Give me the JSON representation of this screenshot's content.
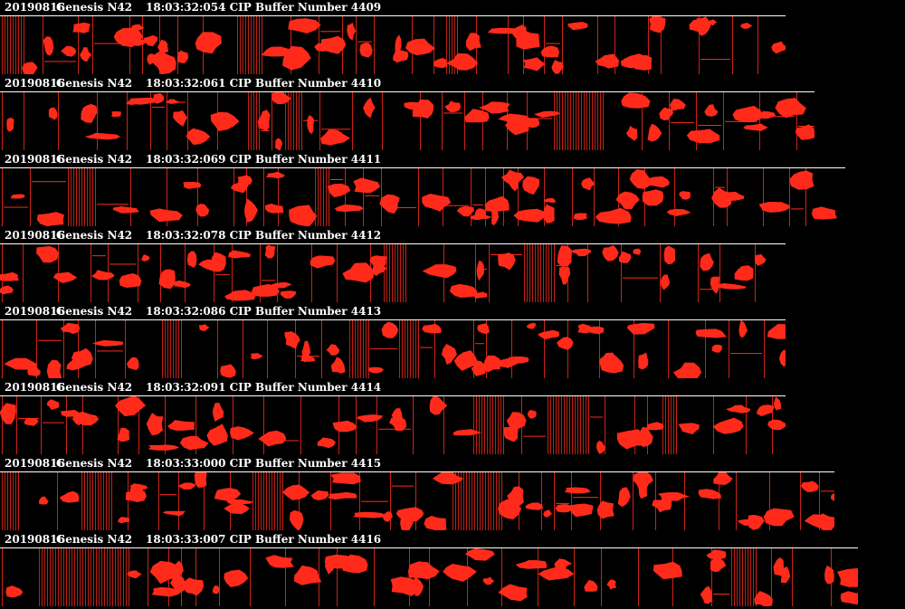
{
  "colors": {
    "background": "#000000",
    "particle": "#ff2a1a",
    "header_text": "#ffffff",
    "rule": "#ffffff"
  },
  "buffers": [
    {
      "date": "20190816",
      "probe": "Genesis N42",
      "time": "18:03:32:054",
      "label": "CIP Buffer Number 4409",
      "number": 4409
    },
    {
      "date": "20190816",
      "probe": "Genesis N42",
      "time": "18:03:32:061",
      "label": "CIP Buffer Number 4410",
      "number": 4410
    },
    {
      "date": "20190816",
      "probe": "Genesis N42",
      "time": "18:03:32:069",
      "label": "CIP Buffer Number 4411",
      "number": 4411
    },
    {
      "date": "20190816",
      "probe": "Genesis N42",
      "time": "18:03:32:078",
      "label": "CIP Buffer Number 4412",
      "number": 4412
    },
    {
      "date": "20190816",
      "probe": "Genesis N42",
      "time": "18:03:32:086",
      "label": "CIP Buffer Number 4413",
      "number": 4413
    },
    {
      "date": "20190816",
      "probe": "Genesis N42",
      "time": "18:03:32:091",
      "label": "CIP Buffer Number 4414",
      "number": 4414
    },
    {
      "date": "20190816",
      "probe": "Genesis N42",
      "time": "18:03:33:000",
      "label": "CIP Buffer Number 4415",
      "number": 4415
    },
    {
      "date": "20190816",
      "probe": "Genesis N42",
      "time": "18:03:33:007",
      "label": "CIP Buffer Number 4416",
      "number": 4416
    }
  ]
}
